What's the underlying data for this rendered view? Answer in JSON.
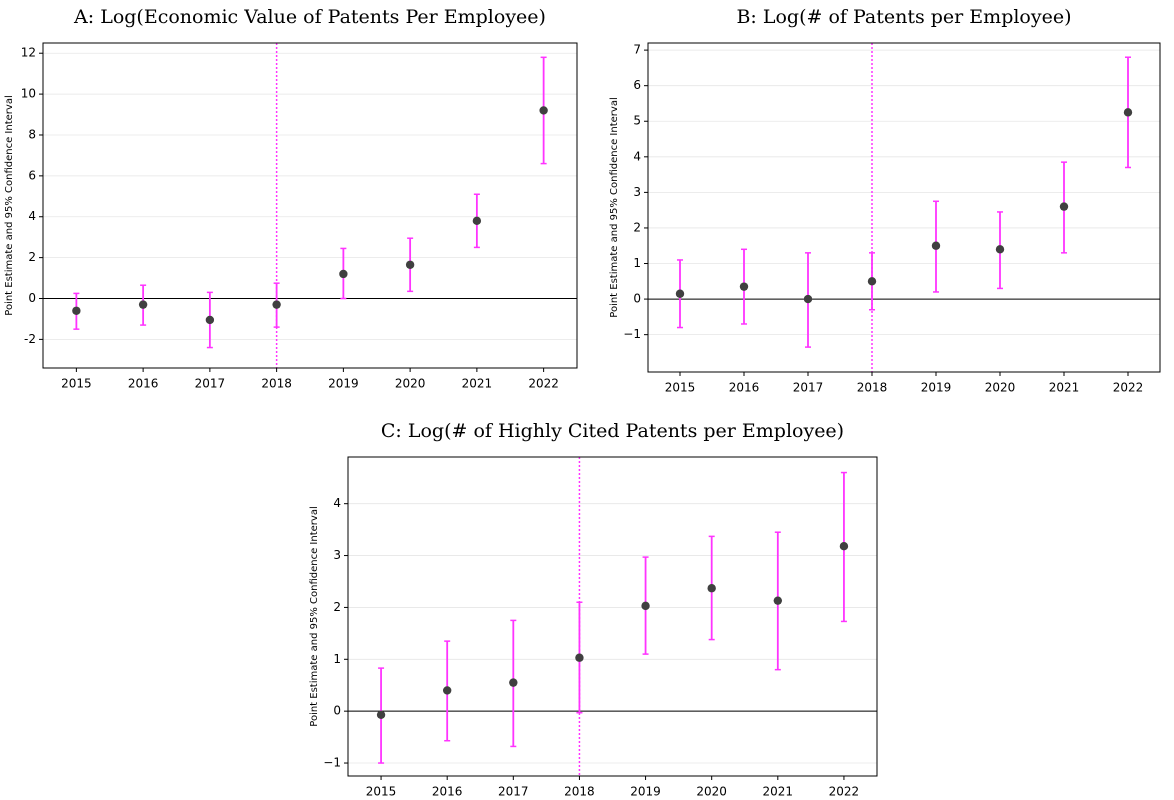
{
  "chart_data": [
    {
      "type": "errorbar",
      "title": "A: Log(Economic Value of Patents Per Employee)",
      "ylabel": "Point Estimate and 95% Confidence Interval",
      "categories": [
        "2015",
        "2016",
        "2017",
        "2018",
        "2019",
        "2020",
        "2021",
        "2022"
      ],
      "values": [
        -0.6,
        -0.3,
        -1.05,
        -0.3,
        1.2,
        1.65,
        3.8,
        9.2
      ],
      "lower": [
        -1.5,
        -1.3,
        -2.4,
        -1.4,
        0,
        0.35,
        2.5,
        6.6
      ],
      "upper": [
        0.25,
        0.65,
        0.3,
        0.75,
        2.45,
        2.95,
        5.1,
        11.8
      ],
      "ylim": [
        -3.4,
        12.5
      ],
      "yticks": [
        -2,
        0,
        2,
        4,
        6,
        8,
        10,
        12
      ],
      "grid": true,
      "hline": 0,
      "vline": "2018",
      "color": "#ff33ff",
      "marker_color": "#404040"
    },
    {
      "type": "errorbar",
      "title": "B: Log(# of Patents per Employee)",
      "ylabel": "Point Estimate and 95% Confidence Interval",
      "categories": [
        "2015",
        "2016",
        "2017",
        "2018",
        "2019",
        "2020",
        "2021",
        "2022"
      ],
      "values": [
        0.15,
        0.35,
        0,
        0.5,
        1.5,
        1.4,
        2.6,
        5.25
      ],
      "lower": [
        -0.8,
        -0.7,
        -1.35,
        -0.3,
        0.2,
        0.3,
        1.3,
        3.7
      ],
      "upper": [
        1.1,
        1.4,
        1.3,
        1.3,
        2.75,
        2.45,
        3.85,
        6.8
      ],
      "ylim": [
        -2.05,
        7.2
      ],
      "yticks": [
        {
          "value": -1,
          "label": "−1"
        },
        0,
        1,
        2,
        3,
        4,
        5,
        6,
        7
      ],
      "grid": true,
      "hline": 0,
      "vline": "2018",
      "color": "#ff33ff",
      "marker_color": "#404040"
    },
    {
      "type": "errorbar",
      "title": "C: Log(# of Highly Cited Patents per Employee)",
      "ylabel": "Point Estimate and 95% Confidence Interval",
      "categories": [
        "2015",
        "2016",
        "2017",
        "2018",
        "2019",
        "2020",
        "2021",
        "2022"
      ],
      "values": [
        -0.07,
        0.4,
        0.55,
        1.03,
        2.03,
        2.37,
        2.13,
        3.18
      ],
      "lower": [
        -1,
        -0.57,
        -0.68,
        -0.03,
        1.1,
        1.38,
        0.8,
        1.73
      ],
      "upper": [
        0.83,
        1.35,
        1.75,
        2.1,
        2.97,
        3.37,
        3.45,
        4.6
      ],
      "ylim": [
        -1.25,
        4.9
      ],
      "yticks": [
        {
          "value": -1,
          "label": "−1"
        },
        0,
        1,
        2,
        3,
        4
      ],
      "grid": true,
      "hline": 0,
      "vline": "2018",
      "color": "#ff33ff",
      "marker_color": "#404040"
    }
  ]
}
